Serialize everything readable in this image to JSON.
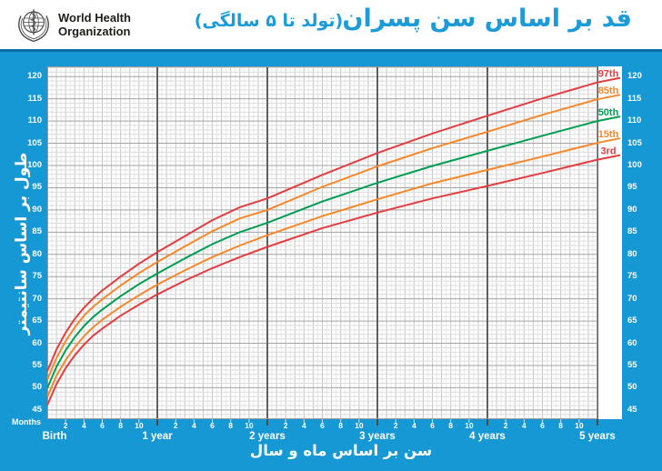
{
  "header": {
    "org_line1": "World Health",
    "org_line2": "Organization",
    "title": "قد بر اساس سن پسران",
    "subtitle": "(تولد تا ۵ سالگی)",
    "title_color": "#1b9bd8"
  },
  "chart": {
    "y_axis_title": "طول بر اساس سانتیمتر",
    "x_axis_title": "سن بر اساس ماه و سال",
    "months_label": "Months",
    "y_ticks": [
      120,
      115,
      110,
      105,
      100,
      95,
      90,
      85,
      80,
      75,
      70,
      65,
      60,
      55,
      50,
      45
    ],
    "month_tick_numbers": [
      2,
      4,
      6,
      8,
      10
    ],
    "year_labels": [
      "Birth",
      "1 year",
      "2 years",
      "3 years",
      "4 years",
      "5 years"
    ],
    "colors": {
      "panel_blue": "#1598d4",
      "divider_blue": "#0c6aa8",
      "red": "#e43d41",
      "orange": "#f6872b",
      "green": "#009e52",
      "grid_minor": "#e9e9e9",
      "grid_month": "#c6c6c6",
      "grid_cm": "#dcdcdc",
      "grid_5cm": "#a3a3a3",
      "grid_year": "#5f5f5f"
    }
  },
  "chart_data": {
    "type": "line",
    "title": "قد بر اساس سن پسران (تولد تا ۵ سالگی)",
    "xlabel": "سن بر اساس ماه و سال",
    "ylabel": "طول بر اساس سانتیمتر",
    "x_unit": "months",
    "x_months": [
      0,
      1,
      2,
      3,
      4,
      5,
      6,
      8,
      10,
      12,
      15,
      18,
      21,
      24,
      30,
      36,
      42,
      48,
      54,
      60
    ],
    "xlim_months": [
      0,
      60
    ],
    "ylim": [
      45,
      120
    ],
    "grid": true,
    "legend_position": "right-of-curves",
    "series": [
      {
        "name": "97th",
        "color": "#e43d41",
        "values": [
          53.7,
          58.6,
          62.4,
          65.5,
          68.0,
          70.1,
          71.9,
          75.0,
          77.9,
          80.5,
          84.1,
          87.7,
          90.6,
          92.6,
          97.9,
          102.8,
          107.2,
          111.2,
          115.1,
          118.7
        ]
      },
      {
        "name": "85th",
        "color": "#f6872b",
        "values": [
          51.8,
          56.7,
          60.5,
          63.6,
          66.2,
          68.2,
          69.9,
          73.0,
          75.8,
          78.3,
          81.8,
          85.2,
          88.1,
          90.0,
          95.2,
          99.8,
          103.9,
          107.6,
          111.4,
          114.9
        ]
      },
      {
        "name": "50th",
        "color": "#009e52",
        "values": [
          49.9,
          54.7,
          58.4,
          61.4,
          63.9,
          65.9,
          67.6,
          70.6,
          73.3,
          75.7,
          79.1,
          82.3,
          85.0,
          87.1,
          91.9,
          96.1,
          99.9,
          103.3,
          106.7,
          110.0
        ]
      },
      {
        "name": "15th",
        "color": "#f6872b",
        "values": [
          47.9,
          52.7,
          56.2,
          59.1,
          61.6,
          63.6,
          65.3,
          68.2,
          70.8,
          73.2,
          76.4,
          79.4,
          82.0,
          84.3,
          88.6,
          92.4,
          96.0,
          99.0,
          102.0,
          105.1
        ]
      },
      {
        "name": "3rd",
        "color": "#e43d41",
        "values": [
          46.1,
          50.8,
          54.4,
          57.3,
          59.7,
          61.7,
          63.3,
          66.2,
          68.7,
          71.0,
          74.1,
          76.9,
          79.4,
          81.7,
          85.9,
          89.4,
          92.6,
          95.4,
          98.3,
          101.3
        ]
      }
    ]
  }
}
